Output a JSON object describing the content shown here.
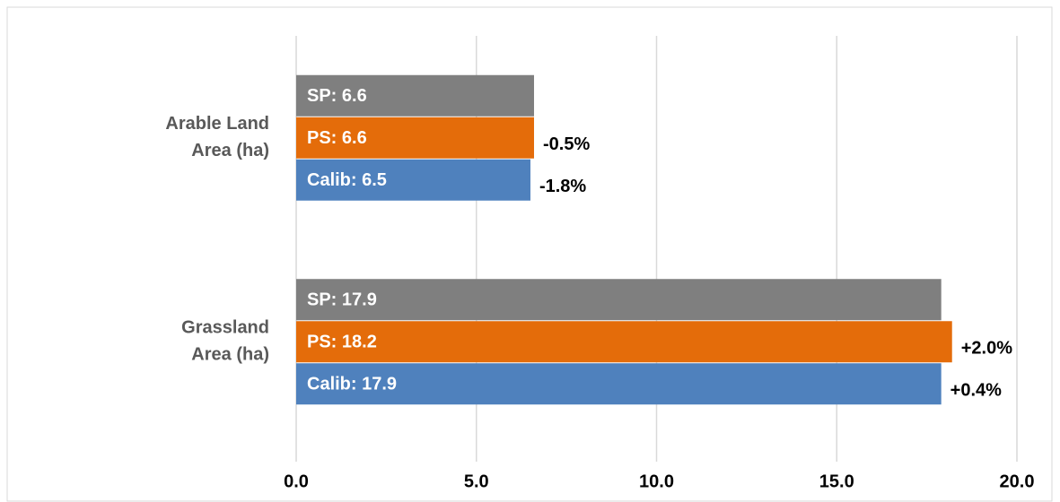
{
  "chart_data": {
    "type": "hbar",
    "categories": [
      [
        "Arable Land",
        "Area (ha)"
      ],
      [
        "Grassland",
        "Area (ha)"
      ]
    ],
    "series": [
      {
        "name": "SP",
        "color": "#7f7f7f",
        "values": [
          6.6,
          17.9
        ],
        "value_labels": [
          "SP: 6.6",
          "SP: 17.9"
        ]
      },
      {
        "name": "PS",
        "color": "#e46c0a",
        "values": [
          6.6,
          18.2
        ],
        "value_labels": [
          "PS: 6.6",
          "PS: 18.2"
        ],
        "change_labels": [
          "-0.5%",
          "+2.0%"
        ]
      },
      {
        "name": "Calib",
        "color": "#4f81bd",
        "values": [
          6.5,
          17.9
        ],
        "value_labels": [
          "Calib: 6.5",
          "Calib: 17.9"
        ],
        "change_labels": [
          "-1.8%",
          "+0.4%"
        ]
      }
    ],
    "xlim": [
      0,
      20
    ],
    "xticks": [
      {
        "value": 0,
        "label": "0.0"
      },
      {
        "value": 5,
        "label": "5.0"
      },
      {
        "value": 10,
        "label": "10.0"
      },
      {
        "value": 15,
        "label": "15.0"
      },
      {
        "value": 20,
        "label": "20.0"
      }
    ],
    "grid": true
  }
}
